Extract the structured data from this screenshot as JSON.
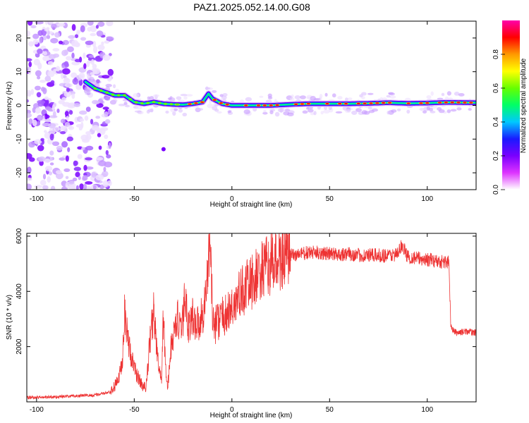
{
  "title": "PAZ1.2025.052.14.00.G08",
  "chart_data": [
    {
      "type": "heatmap",
      "xlabel": "Height of straight line (km)",
      "ylabel": "Frequency (Hz)",
      "xlim": [
        -105,
        125
      ],
      "ylim": [
        -25,
        25
      ],
      "x_ticks": [
        -100,
        -50,
        0,
        50,
        100
      ],
      "y_ticks": [
        -20,
        -10,
        0,
        10,
        20
      ],
      "colorbar": {
        "label": "Normalized spectral amplitude",
        "range": [
          0,
          1
        ],
        "ticks": [
          "0.0",
          "0.2",
          "0.4",
          "0.6",
          "0.8"
        ],
        "colors": [
          "#ffffff",
          "#dd33ff",
          "#7a00ff",
          "#1a1aff",
          "#00c8ff",
          "#00ff66",
          "#66ff00",
          "#ffff00",
          "#ff9900",
          "#ff0000",
          "#ff00aa"
        ]
      },
      "ridge": {
        "x": [
          -75,
          -70,
          -65,
          -60,
          -55,
          -50,
          -45,
          -40,
          -35,
          -30,
          -25,
          -20,
          -15,
          -12,
          -10,
          -5,
          0,
          10,
          20,
          30,
          40,
          50,
          60,
          70,
          80,
          90,
          100,
          110,
          125
        ],
        "frequency": [
          7,
          5,
          4,
          3,
          3,
          1,
          0.5,
          1,
          0.5,
          0.3,
          0.2,
          0.5,
          1,
          3.5,
          2,
          0.5,
          0,
          0,
          0,
          0.3,
          0.5,
          0.5,
          0.5,
          0.6,
          0.8,
          0.6,
          0.7,
          0.9,
          0.8
        ]
      },
      "noise_region_x": [
        -105,
        -62
      ]
    },
    {
      "type": "line",
      "xlabel": "Height of straight line (km)",
      "ylabel": "SNR (10 * v/v)",
      "xlim": [
        -105,
        125
      ],
      "ylim": [
        0,
        6100
      ],
      "x_ticks": [
        -100,
        -50,
        0,
        50,
        100
      ],
      "y_ticks": [
        2000,
        4000,
        6000
      ],
      "color": "#ee3333",
      "series": [
        {
          "x": [
            -105,
            -90,
            -70,
            -62,
            -58,
            -56,
            -55,
            -54,
            -52,
            -50,
            -48,
            -46,
            -44,
            -42,
            -40,
            -38,
            -36,
            -35,
            -34,
            -33,
            -32,
            -31,
            -30,
            -28,
            -26,
            -24,
            -22,
            -20,
            -18,
            -16,
            -14,
            -13,
            -12,
            -11,
            -10,
            -9,
            -8,
            -6,
            -4,
            -2,
            0,
            5,
            10,
            15,
            20,
            25,
            30,
            35,
            40,
            45,
            50,
            55,
            60,
            65,
            70,
            75,
            80,
            85,
            87,
            90,
            95,
            100,
            105,
            110,
            111,
            112,
            113,
            115,
            120,
            125
          ],
          "values": [
            150,
            180,
            250,
            350,
            800,
            1600,
            3400,
            2600,
            1800,
            1200,
            900,
            600,
            500,
            2200,
            3300,
            1500,
            700,
            3400,
            1200,
            500,
            1200,
            2100,
            2300,
            3100,
            2400,
            3800,
            2700,
            3100,
            2800,
            3000,
            3500,
            4100,
            5300,
            5900,
            3300,
            2600,
            2900,
            3000,
            3100,
            3200,
            3400,
            4000,
            4300,
            4700,
            5000,
            5200,
            5300,
            5350,
            5400,
            5400,
            5350,
            5350,
            5350,
            5300,
            5300,
            5300,
            5300,
            5350,
            5700,
            5250,
            5200,
            5150,
            5100,
            5050,
            5100,
            2800,
            2600,
            2500,
            2550,
            2500
          ]
        }
      ]
    }
  ]
}
